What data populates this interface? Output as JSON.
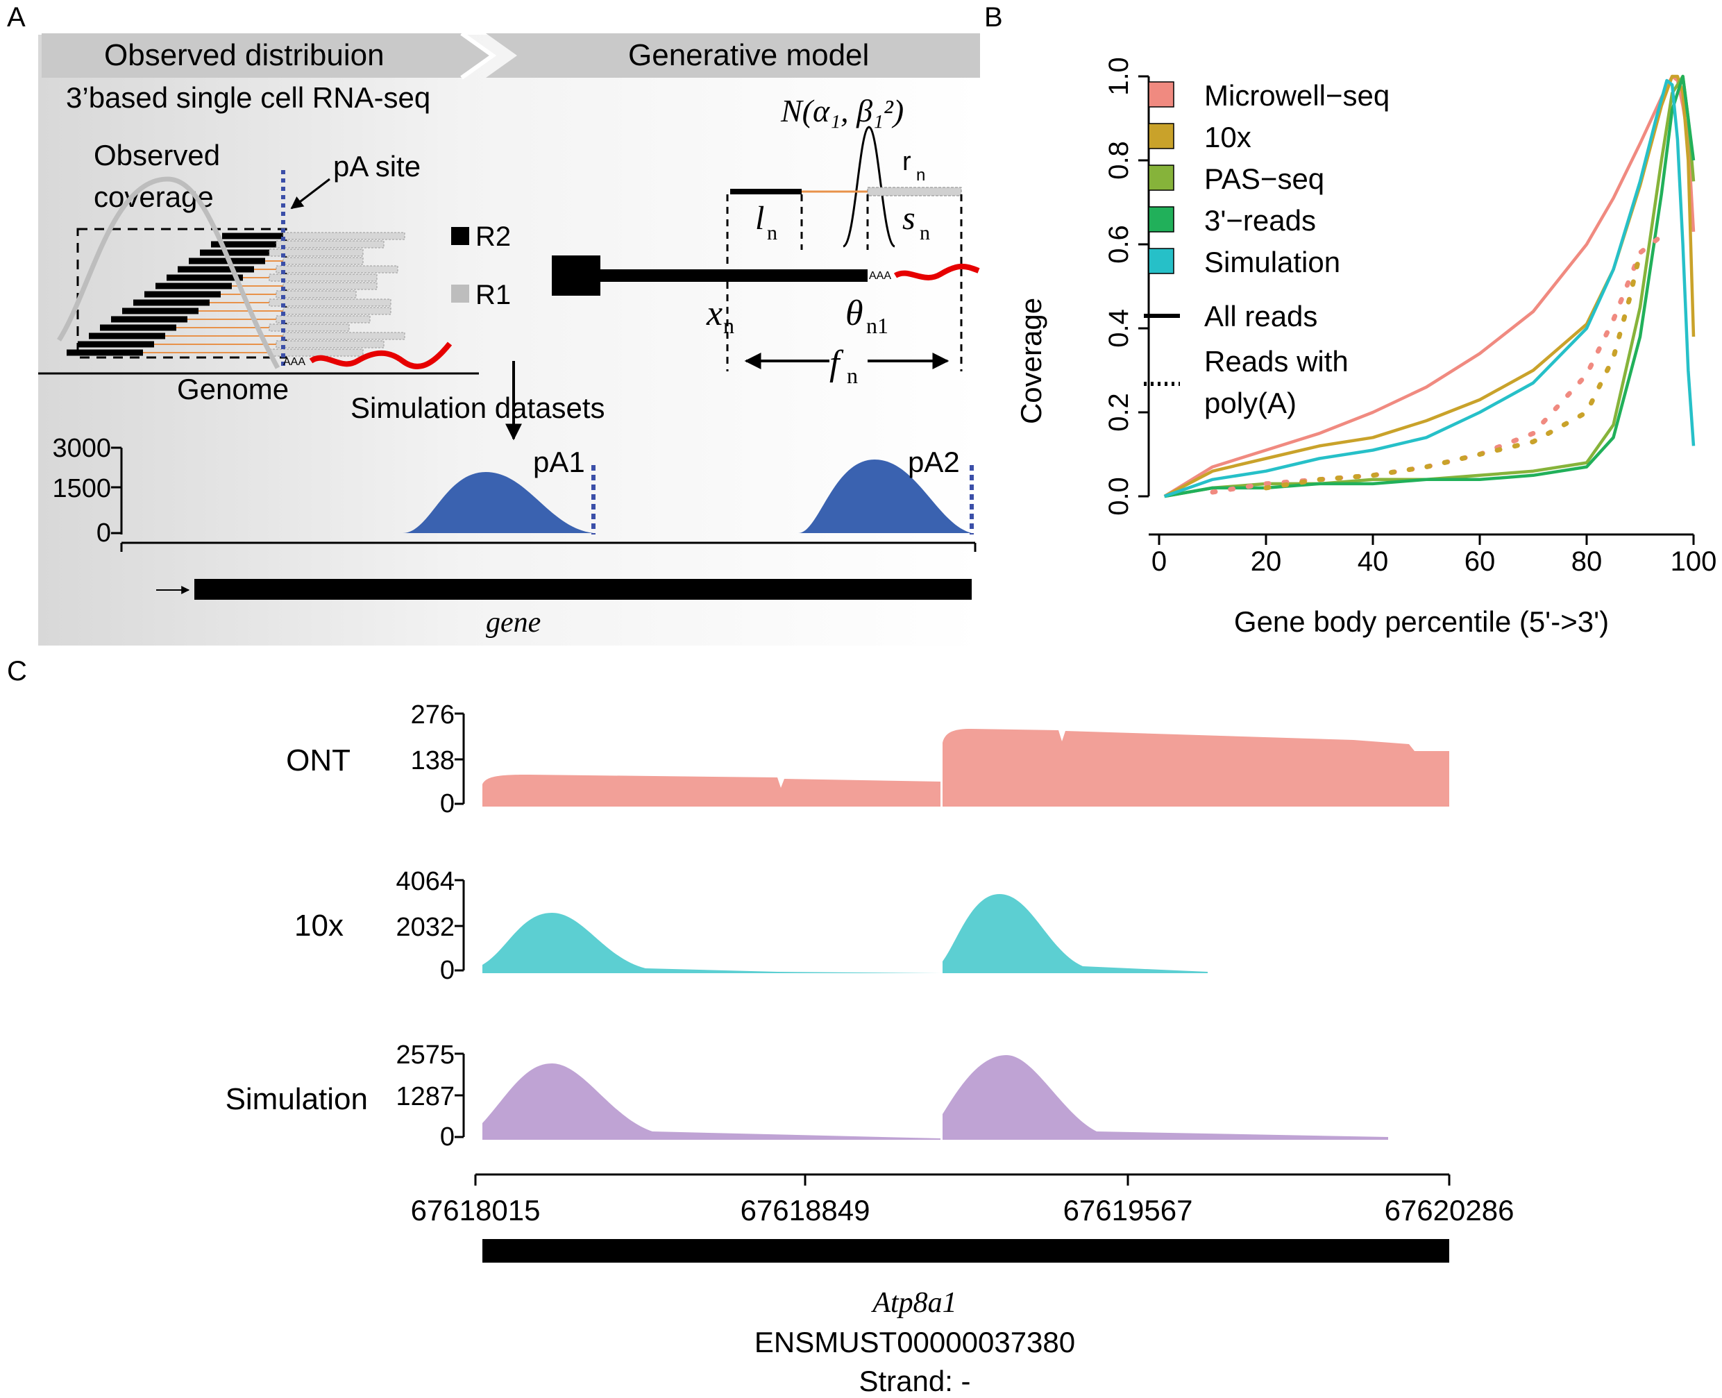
{
  "panel_labels": {
    "a": "A",
    "b": "B",
    "c": "C"
  },
  "panel_a": {
    "banner_left": "Observed distribuion",
    "banner_right": "Generative model",
    "subtitle": "3’based single cell RNA-seq",
    "observed_coverage_l1": "Observed",
    "observed_coverage_l2": "coverage",
    "pa_site": "pA site",
    "r2": "R2",
    "r1": "R1",
    "genome": "Genome",
    "aaa": "AAA",
    "simulation_datasets": "Simulation datasets",
    "model": {
      "normal": "N(α₁, β₁²)",
      "r_n": "r",
      "r_n_sub": "n",
      "l_n": "l",
      "l_n_sub": "n",
      "s_n": "s",
      "s_n_sub": "n",
      "x_n": "x",
      "x_n_sub": "n",
      "theta_n1": "θ",
      "theta_n1_sub": "n1",
      "f_n": "f",
      "f_n_sub": "n"
    },
    "track": {
      "yticks": [
        "3000",
        "1500",
        "0"
      ],
      "pa1": "pA1",
      "pa2": "pA2",
      "gene_label": "gene"
    }
  },
  "chart_data": [
    {
      "type": "line",
      "panel": "B",
      "xlabel": "Gene body percentile (5'->3')",
      "ylabel": "Coverage",
      "xlim": [
        0,
        100
      ],
      "ylim": [
        0,
        1
      ],
      "xticks": [
        0,
        20,
        40,
        60,
        80,
        100
      ],
      "yticks": [
        "0.0",
        "0.2",
        "0.4",
        "0.6",
        "0.8",
        "1.0"
      ],
      "legend_position": "top-right",
      "series": [
        {
          "name": "Microwell−seq",
          "color": "#f08a80",
          "style": "solid",
          "x": [
            1,
            10,
            20,
            30,
            40,
            50,
            60,
            70,
            80,
            85,
            90,
            94,
            96,
            97,
            98,
            99,
            100
          ],
          "y": [
            0.0,
            0.07,
            0.11,
            0.15,
            0.2,
            0.26,
            0.34,
            0.44,
            0.6,
            0.71,
            0.84,
            0.95,
            1.0,
            0.99,
            0.93,
            0.85,
            0.63
          ]
        },
        {
          "name": "10x",
          "color": "#c9a22a",
          "style": "solid",
          "x": [
            1,
            10,
            20,
            30,
            40,
            50,
            60,
            70,
            80,
            85,
            90,
            94,
            96,
            97,
            98,
            99,
            100
          ],
          "y": [
            0.0,
            0.06,
            0.09,
            0.12,
            0.14,
            0.18,
            0.23,
            0.3,
            0.41,
            0.54,
            0.74,
            0.93,
            1.0,
            1.0,
            0.96,
            0.8,
            0.38
          ]
        },
        {
          "name": "PAS−seq",
          "color": "#86b33a",
          "style": "solid",
          "x": [
            1,
            10,
            20,
            30,
            40,
            50,
            60,
            70,
            80,
            85,
            90,
            94,
            96,
            98,
            99,
            100
          ],
          "y": [
            0.0,
            0.02,
            0.03,
            0.03,
            0.04,
            0.04,
            0.05,
            0.06,
            0.08,
            0.17,
            0.45,
            0.8,
            0.96,
            1.0,
            0.9,
            0.75
          ]
        },
        {
          "name": "3'−reads",
          "color": "#21b05a",
          "style": "solid",
          "x": [
            1,
            10,
            20,
            30,
            40,
            50,
            60,
            70,
            80,
            85,
            90,
            94,
            96,
            98,
            99,
            100
          ],
          "y": [
            0.0,
            0.02,
            0.02,
            0.03,
            0.03,
            0.04,
            0.04,
            0.05,
            0.07,
            0.14,
            0.38,
            0.72,
            0.92,
            1.0,
            0.9,
            0.8
          ]
        },
        {
          "name": "Simulation",
          "color": "#26c0c8",
          "style": "solid",
          "x": [
            1,
            10,
            20,
            30,
            40,
            50,
            60,
            70,
            80,
            85,
            90,
            93,
            95,
            96,
            97,
            98,
            99,
            100
          ],
          "y": [
            0.0,
            0.04,
            0.06,
            0.09,
            0.11,
            0.14,
            0.2,
            0.27,
            0.4,
            0.54,
            0.75,
            0.9,
            0.99,
            0.98,
            0.85,
            0.6,
            0.3,
            0.12
          ]
        },
        {
          "name": "Microwell−seq poly(A)",
          "color": "#f08a80",
          "style": "dotted",
          "x": [
            10,
            20,
            30,
            40,
            50,
            60,
            70,
            80,
            85,
            90,
            94
          ],
          "y": [
            0.01,
            0.03,
            0.04,
            0.05,
            0.07,
            0.1,
            0.15,
            0.29,
            0.42,
            0.58,
            0.62
          ]
        },
        {
          "name": "10x poly(A)",
          "color": "#c9a22a",
          "style": "dotted",
          "x": [
            20,
            30,
            40,
            50,
            60,
            70,
            80,
            85,
            88,
            90
          ],
          "y": [
            0.02,
            0.04,
            0.05,
            0.07,
            0.1,
            0.13,
            0.2,
            0.33,
            0.47,
            0.58
          ]
        }
      ],
      "legend_style_entries": [
        {
          "label": "All reads",
          "style": "solid"
        },
        {
          "label_l1": "Reads with",
          "label_l2": "poly(A)",
          "style": "dotted"
        }
      ]
    },
    {
      "type": "area",
      "panel": "C",
      "tracks": [
        {
          "name": "ONT",
          "color": "#f2a098",
          "yticks": [
            "276",
            "138",
            "0"
          ]
        },
        {
          "name": "10x",
          "color": "#5ccfd2",
          "yticks": [
            "4064",
            "2032",
            "0"
          ]
        },
        {
          "name": "Simulation",
          "color": "#bfa3d4",
          "yticks": [
            "2575",
            "1287",
            "0"
          ]
        }
      ],
      "x_ticks": [
        "67618015",
        "67618849",
        "67619567",
        "67620286"
      ],
      "gene": {
        "name": "Atp8a1",
        "transcript": "ENSMUST00000037380",
        "strand": "Strand: -"
      }
    }
  ]
}
